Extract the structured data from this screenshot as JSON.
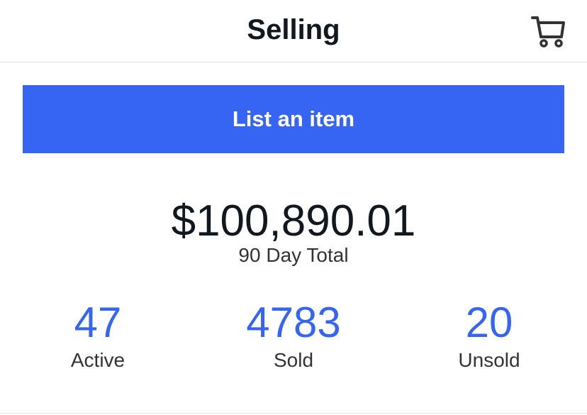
{
  "header": {
    "title": "Selling"
  },
  "button": {
    "label": "List an item"
  },
  "summary": {
    "total": "$100,890.01",
    "total_label": "90 Day Total"
  },
  "stats": [
    {
      "value": 47,
      "label": "Active"
    },
    {
      "value": 4783,
      "label": "Sold"
    },
    {
      "value": 20,
      "label": "Unsold"
    }
  ]
}
